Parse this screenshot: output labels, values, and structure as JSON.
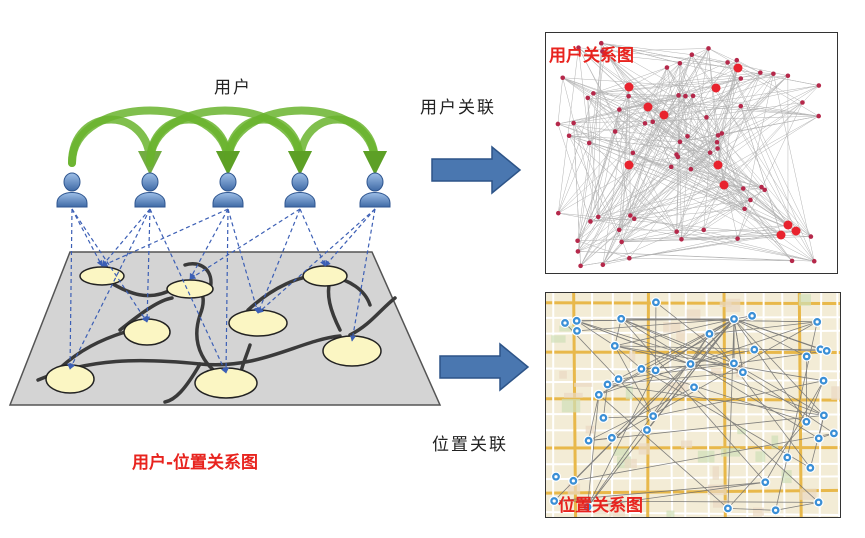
{
  "labels": {
    "users": "用户",
    "user_association": "用户关联",
    "location_association": "位置关联",
    "user_location_graph": "用户-位置关系图",
    "user_graph_title": "用户关系图",
    "location_graph_title": "位置关系图"
  },
  "colors": {
    "user_node": "#e8232e",
    "user_node_small": "#b5284a",
    "location_node": "#3a8fd6",
    "arrow_fill": "#4a77b0",
    "arc_green": "#6ab42e",
    "place_fill": "#fbf6c3",
    "plane_fill": "#d4d4d4",
    "edge_gray": "#8a8a8a"
  },
  "icons": [
    "person-icon",
    "right-arrow-icon"
  ]
}
